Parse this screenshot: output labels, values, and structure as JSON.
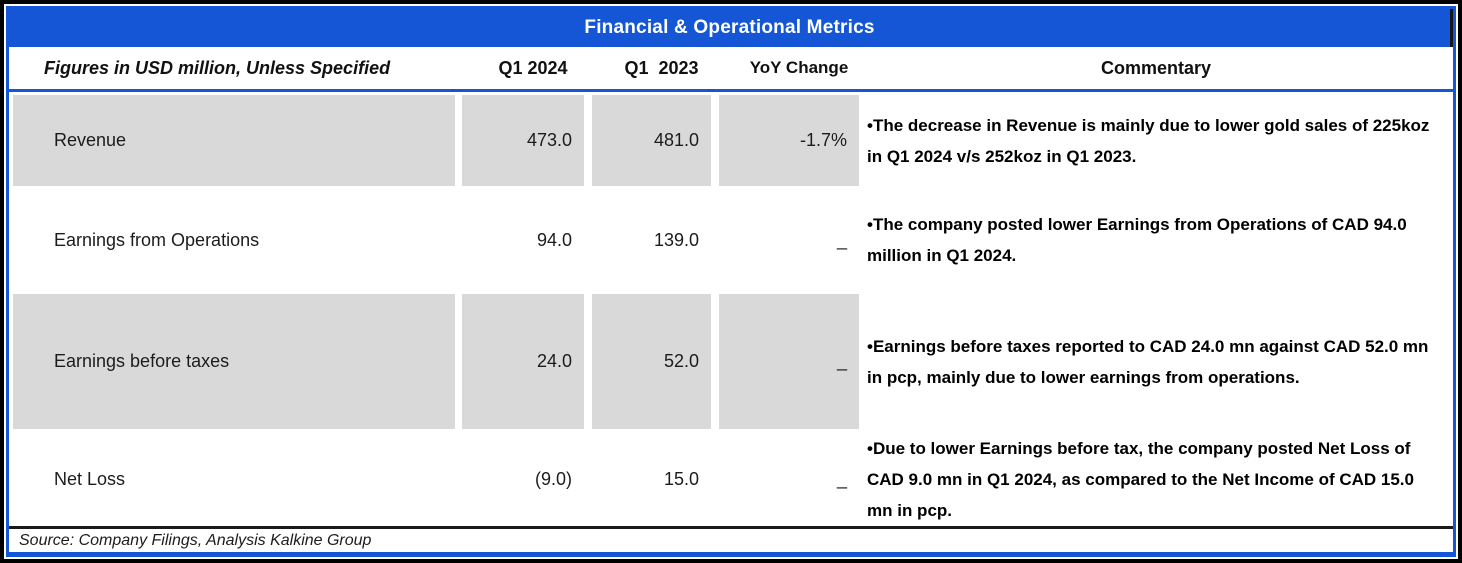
{
  "title": "Financial & Operational Metrics",
  "columns": {
    "metric": "Figures in USD million, Unless Specified",
    "q1_2024": "Q1 2024",
    "q1_2023": "Q1  2023",
    "yoy": "YoY Change",
    "commentary": "Commentary"
  },
  "rows": [
    {
      "metric": "Revenue",
      "q1_2024": "473.0",
      "q1_2023": "481.0",
      "yoy": "-1.7%",
      "commentary": "•The decrease in Revenue  is mainly due to lower gold sales of 225koz in Q1 2024 v/s 252koz in Q1 2023."
    },
    {
      "metric": "Earnings from Operations",
      "q1_2024": "94.0",
      "q1_2023": "139.0",
      "yoy": "_",
      "commentary": "•The company posted lower Earnings from Operations of CAD 94.0 million in Q1 2024."
    },
    {
      "metric": "Earnings before taxes",
      "q1_2024": "24.0",
      "q1_2023": "52.0",
      "yoy": "_",
      "commentary": "•Earnings before taxes reported to CAD 24.0 mn against CAD 52.0 mn in pcp, mainly due to lower earnings from operations."
    },
    {
      "metric": "Net Loss",
      "q1_2024": "(9.0)",
      "q1_2023": "15.0",
      "yoy": "_",
      "commentary": "•Due to lower Earnings before tax, the company posted Net Loss of CAD 9.0 mn in Q1 2024, as compared to the Net Income of CAD 15.0 mn in pcp."
    }
  ],
  "source": "Source: Company Filings, Analysis Kalkine Group",
  "colors": {
    "header_blue": "#1456d6",
    "row_gray": "#d9d9d9",
    "border_black": "#000000"
  },
  "chart_data": {
    "type": "table",
    "title": "Financial & Operational Metrics",
    "unit_note": "Figures in USD million, Unless Specified",
    "categories": [
      "Revenue",
      "Earnings from Operations",
      "Earnings before taxes",
      "Net Loss"
    ],
    "series": [
      {
        "name": "Q1 2024",
        "values": [
          473.0,
          94.0,
          24.0,
          -9.0
        ]
      },
      {
        "name": "Q1 2023",
        "values": [
          481.0,
          139.0,
          52.0,
          15.0
        ]
      },
      {
        "name": "YoY Change",
        "values": [
          "-1.7%",
          null,
          null,
          null
        ]
      }
    ]
  }
}
